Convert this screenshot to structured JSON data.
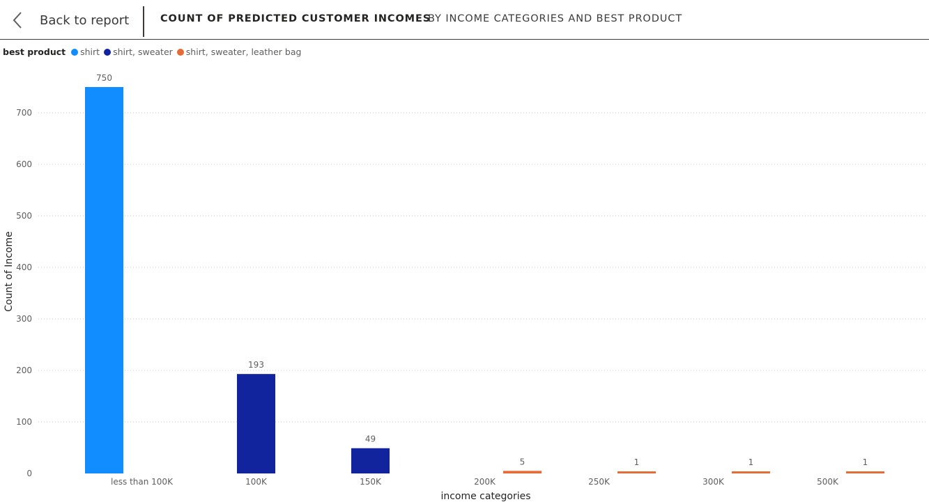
{
  "header": {
    "back_label": "Back to report",
    "title": "COUNT OF PREDICTED CUSTOMER INCOMES",
    "subtitle": "BY INCOME CATEGORIES AND BEST PRODUCT"
  },
  "legend": {
    "title": "best product",
    "items": [
      {
        "label": "shirt",
        "color": "#118DFF"
      },
      {
        "label": "shirt, sweater",
        "color": "#12239E"
      },
      {
        "label": "shirt, sweater, leather bag",
        "color": "#E66C37"
      }
    ]
  },
  "chart_data": {
    "type": "bar",
    "title": "COUNT OF PREDICTED CUSTOMER INCOMES",
    "subtitle": "BY INCOME CATEGORIES AND BEST PRODUCT",
    "xlabel": "income categories",
    "ylabel": "Count of Income",
    "ylim": [
      0,
      800
    ],
    "yticks": [
      0,
      100,
      200,
      300,
      400,
      500,
      600,
      700
    ],
    "grid": true,
    "legend_position": "top-left",
    "categories": [
      "less than 100K",
      "100K",
      "150K",
      "200K",
      "250K",
      "300K",
      "500K"
    ],
    "series": [
      {
        "name": "shirt",
        "color": "#118DFF",
        "values": [
          750,
          null,
          null,
          null,
          null,
          null,
          null
        ]
      },
      {
        "name": "shirt, sweater",
        "color": "#12239E",
        "values": [
          null,
          193,
          49,
          null,
          null,
          null,
          null
        ]
      },
      {
        "name": "shirt, sweater, leather bag",
        "color": "#E66C37",
        "values": [
          null,
          null,
          null,
          5,
          1,
          1,
          1
        ]
      }
    ],
    "data_labels": true
  }
}
